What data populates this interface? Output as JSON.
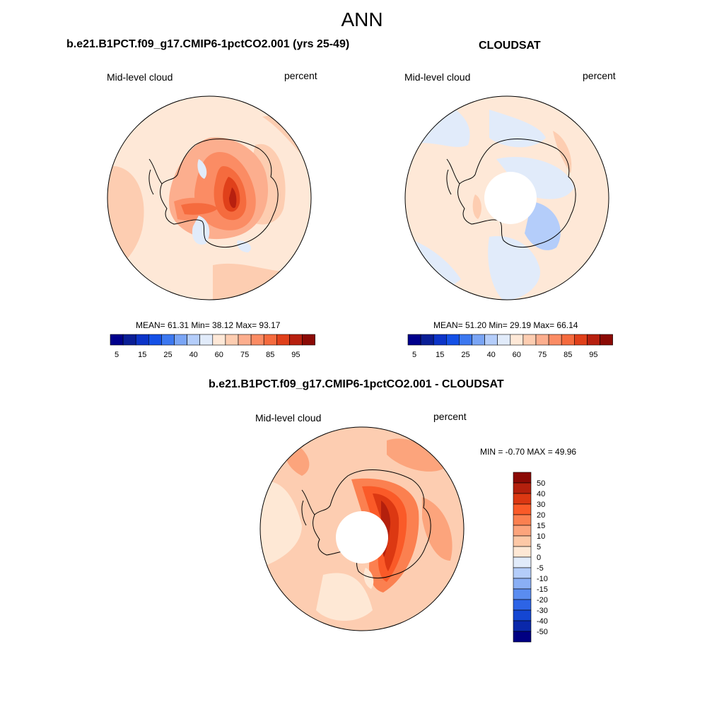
{
  "figure": {
    "title": "ANN"
  },
  "panels": [
    {
      "title": "b.e21.B1PCT.f09_g17.CMIP6-1pctCO2.001 (yrs 25-49)",
      "left_label": "Mid-level cloud",
      "right_label": "percent",
      "stats": {
        "mean_label": "MEAN=",
        "mean": "61.31",
        "min_label": "Min=",
        "min": "38.12",
        "max_label": "Max=",
        "max": "93.17"
      },
      "stats_text": "MEAN=  61.31  Min=  38.12  Max=  93.17"
    },
    {
      "title": "CLOUDSAT",
      "left_label": "Mid-level cloud",
      "right_label": "percent",
      "stats": {
        "mean_label": "MEAN=",
        "mean": "51.20",
        "min_label": "Min=",
        "min": "29.19",
        "max_label": "Max=",
        "max": "66.14"
      },
      "stats_text": "MEAN=  51.20  Min=  29.19  Max=  66.14"
    },
    {
      "title": "b.e21.B1PCT.f09_g17.CMIP6-1pctCO2.001 - CLOUDSAT",
      "left_label": "Mid-level cloud",
      "right_label": "percent",
      "stats_text": "MIN =  -0.70 MAX =  49.96"
    }
  ],
  "colorbar_abs": {
    "colors": [
      "#00008c",
      "#0a1e96",
      "#0c34c8",
      "#1450e6",
      "#3c78f0",
      "#7aa5f5",
      "#b4cdfa",
      "#e1ebfa",
      "#fee8d7",
      "#fdcdb1",
      "#fcae8e",
      "#fb8c64",
      "#f56b3e",
      "#e0401a",
      "#b7200f",
      "#8b0a05"
    ],
    "tick_labels": [
      "5",
      "15",
      "25",
      "40",
      "60",
      "75",
      "85",
      "95"
    ]
  },
  "colorbar_diff": {
    "colors_top_to_bottom": [
      "#8b0a05",
      "#b4200d",
      "#dc3812",
      "#fa5a28",
      "#fb8050",
      "#fca47c",
      "#fdc8a6",
      "#fee8d5",
      "#e1ebfa",
      "#b4cdfa",
      "#8aaff5",
      "#5a8cf0",
      "#2d64e6",
      "#1446d2",
      "#0a28aa",
      "#000082"
    ],
    "tick_labels": [
      "50",
      "40",
      "30",
      "20",
      "15",
      "10",
      "5",
      "0",
      "-5",
      "-10",
      "-15",
      "-20",
      "-30",
      "-40",
      "-50"
    ]
  },
  "legend": {
    "name": "percent"
  }
}
